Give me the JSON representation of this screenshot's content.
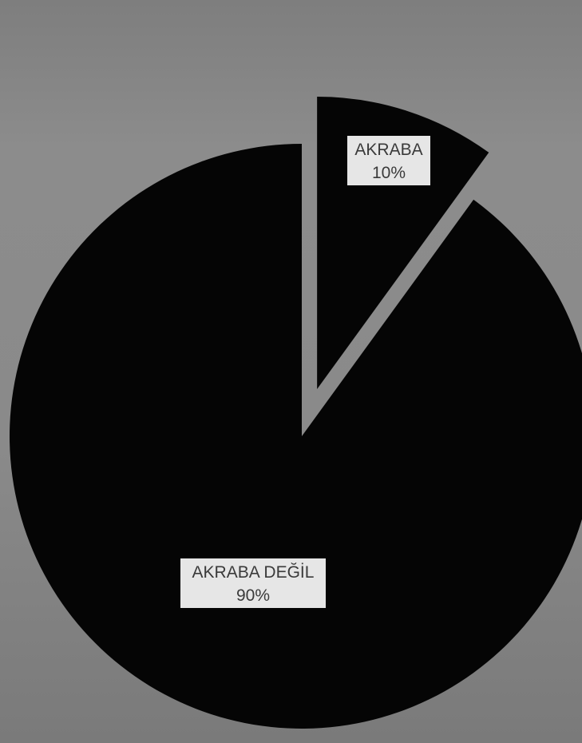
{
  "chart_data": {
    "type": "pie",
    "title": "",
    "slices": [
      {
        "label": "AKRABA",
        "value": 10,
        "percent_label": "10%",
        "exploded": true,
        "color": "#050505"
      },
      {
        "label": "AKRABA DEĞİL",
        "value": 90,
        "percent_label": "90%",
        "exploded": false,
        "color": "#050505"
      }
    ],
    "legend": "none",
    "start_angle_deg": 0,
    "background_color": "#8a8a8a",
    "label_box_color": "#e6e6e6"
  }
}
